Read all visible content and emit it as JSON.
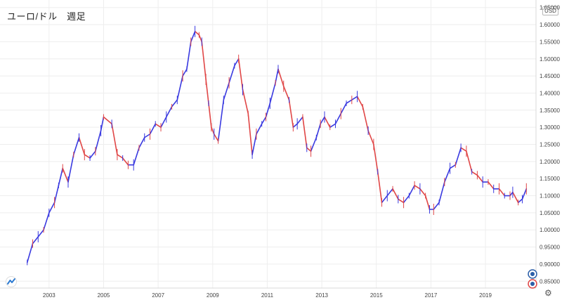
{
  "header": {
    "title": "ユーロ/ドル　週足"
  },
  "currency": "USD",
  "colors": {
    "up": "#3a3ae0",
    "down": "#e04646",
    "grid": "#eeeeee",
    "axis": "#d8d8d8"
  },
  "chart_data": {
    "type": "line",
    "title": "ユーロ/ドル　週足",
    "xlabel": "",
    "ylabel": "",
    "xlim": [
      2002.0,
      2020.75
    ],
    "ylim": [
      0.83,
      1.672
    ],
    "y_ticks": [
      0.85,
      0.9,
      0.95,
      1.0,
      1.05,
      1.1,
      1.15,
      1.2,
      1.25,
      1.3,
      1.35,
      1.4,
      1.45,
      1.5,
      1.55,
      1.6,
      1.65
    ],
    "y_tick_labels": [
      "0.85000",
      "0.90000",
      "0.95000",
      "1.00000",
      "1.05000",
      "1.10000",
      "1.15000",
      "1.20000",
      "1.25000",
      "1.30000",
      "1.35000",
      "1.40000",
      "1.45000",
      "1.50000",
      "1.55000",
      "1.60000",
      "1.65000"
    ],
    "x_ticks": [
      2003,
      2005,
      2007,
      2009,
      2011,
      2013,
      2015,
      2017,
      2019
    ],
    "x_tick_labels": [
      "2003",
      "2005",
      "2007",
      "2009",
      "2011",
      "2013",
      "2015",
      "2017",
      "2019"
    ],
    "grid": true,
    "series": [
      {
        "x": [
          2002.2,
          2002.4,
          2002.6,
          2002.8,
          2003.0,
          2003.2,
          2003.35,
          2003.5,
          2003.7,
          2003.9,
          2004.1,
          2004.3,
          2004.5,
          2004.7,
          2004.9,
          2005.0,
          2005.3,
          2005.5,
          2005.7,
          2005.9,
          2006.1,
          2006.3,
          2006.5,
          2006.7,
          2006.9,
          2007.1,
          2007.3,
          2007.5,
          2007.7,
          2007.9,
          2008.05,
          2008.2,
          2008.35,
          2008.5,
          2008.6,
          2008.75,
          2008.85,
          2008.95,
          2009.05,
          2009.2,
          2009.4,
          2009.6,
          2009.8,
          2009.95,
          2010.1,
          2010.3,
          2010.45,
          2010.6,
          2010.8,
          2010.95,
          2011.1,
          2011.3,
          2011.4,
          2011.6,
          2011.8,
          2011.95,
          2012.1,
          2012.3,
          2012.45,
          2012.6,
          2012.8,
          2012.95,
          2013.1,
          2013.3,
          2013.5,
          2013.7,
          2013.9,
          2014.1,
          2014.3,
          2014.5,
          2014.7,
          2014.9,
          2015.05,
          2015.2,
          2015.4,
          2015.6,
          2015.8,
          2016.0,
          2016.2,
          2016.4,
          2016.6,
          2016.8,
          2016.95,
          2017.1,
          2017.3,
          2017.5,
          2017.7,
          2017.9,
          2018.1,
          2018.3,
          2018.5,
          2018.7,
          2018.9,
          2019.1,
          2019.3,
          2019.5,
          2019.7,
          2019.9,
          2020.0,
          2020.2,
          2020.35,
          2020.5
        ],
        "values": [
          0.905,
          0.96,
          0.98,
          1.0,
          1.05,
          1.08,
          1.13,
          1.18,
          1.14,
          1.22,
          1.27,
          1.22,
          1.21,
          1.23,
          1.29,
          1.33,
          1.31,
          1.22,
          1.21,
          1.19,
          1.19,
          1.24,
          1.27,
          1.28,
          1.31,
          1.3,
          1.33,
          1.36,
          1.38,
          1.45,
          1.47,
          1.55,
          1.58,
          1.57,
          1.55,
          1.44,
          1.37,
          1.3,
          1.28,
          1.26,
          1.38,
          1.43,
          1.48,
          1.5,
          1.41,
          1.34,
          1.22,
          1.28,
          1.31,
          1.33,
          1.37,
          1.43,
          1.47,
          1.42,
          1.38,
          1.3,
          1.31,
          1.33,
          1.24,
          1.23,
          1.27,
          1.31,
          1.33,
          1.3,
          1.31,
          1.34,
          1.37,
          1.38,
          1.39,
          1.36,
          1.29,
          1.25,
          1.17,
          1.08,
          1.1,
          1.12,
          1.09,
          1.08,
          1.1,
          1.13,
          1.12,
          1.1,
          1.06,
          1.06,
          1.08,
          1.14,
          1.18,
          1.19,
          1.24,
          1.23,
          1.17,
          1.16,
          1.14,
          1.14,
          1.12,
          1.12,
          1.1,
          1.1,
          1.11,
          1.08,
          1.09,
          1.12
        ]
      }
    ]
  }
}
